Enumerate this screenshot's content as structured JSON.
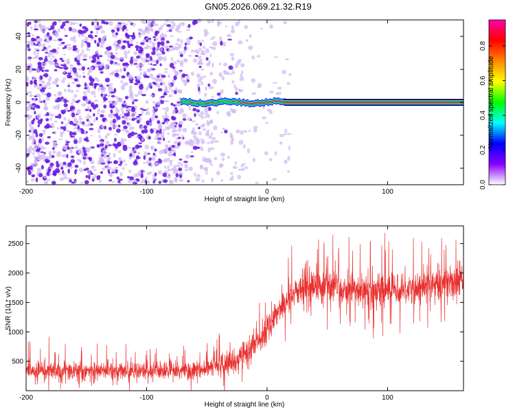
{
  "title": "GN05.2026.069.21.32.R19",
  "colors": {
    "snr_line": "#e8302e",
    "axis": "#000000",
    "dot_dark": "#6a1fe0",
    "dot_light": "#cdb8f2",
    "track_red": "#e83030",
    "track_green": "#2ec040",
    "track_blue": "#2a2aff",
    "track_cyan": "#00e0e0"
  },
  "chart_data": [
    {
      "type": "heatmap",
      "name": "spectrogram",
      "xlabel": "Height of straight line (km)",
      "ylabel": "Frequency (Hz)",
      "xlim": [
        -200,
        163
      ],
      "ylim": [
        -50,
        50
      ],
      "x_ticks": [
        -200,
        -100,
        0,
        100
      ],
      "y_ticks": [
        -40,
        -20,
        0,
        20,
        40
      ],
      "x_tick_labels": [
        "-200",
        "-100",
        "0",
        "100"
      ],
      "y_tick_labels": [
        "-40",
        "-20",
        "0",
        "20",
        "40"
      ],
      "noise_region_km": [
        -200,
        -55
      ],
      "track_start_km": -72,
      "track_steady_km": 14,
      "track_frequency_hz": 0,
      "colorbar": {
        "label": "Normalized spectral amplitude",
        "range": [
          0,
          0.95
        ],
        "ticks": [
          0,
          0.2,
          0.4,
          0.6,
          0.8
        ],
        "tick_labels": [
          "0.0",
          "0.2",
          "0.4",
          "0.6",
          "0.8"
        ],
        "colormap": [
          "#ffffff",
          "#8800ff",
          "#0000ff",
          "#00ffff",
          "#00ff00",
          "#ffff00",
          "#ff8800",
          "#ff0000",
          "#ff00aa"
        ]
      }
    },
    {
      "type": "line",
      "name": "snr",
      "xlabel": "Height of straight line (km)",
      "ylabel": "SNR (10 * v/v)",
      "xlim": [
        -200,
        163
      ],
      "ylim": [
        0,
        2800
      ],
      "x_ticks": [
        -200,
        -100,
        0,
        100
      ],
      "y_ticks": [
        500,
        1000,
        1500,
        2000,
        2500
      ],
      "x_tick_labels": [
        "-200",
        "-100",
        "0",
        "100"
      ],
      "y_tick_labels": [
        "500",
        "1000",
        "1500",
        "2000",
        "2500"
      ],
      "trend": {
        "x": [
          -200,
          -60,
          -40,
          -25,
          -15,
          -5,
          5,
          15,
          25,
          40,
          60,
          80,
          100,
          120,
          140,
          163
        ],
        "y": [
          330,
          340,
          420,
          520,
          700,
          900,
          1250,
          1500,
          1700,
          1780,
          1720,
          1700,
          1720,
          1760,
          1800,
          1900
        ]
      }
    }
  ]
}
